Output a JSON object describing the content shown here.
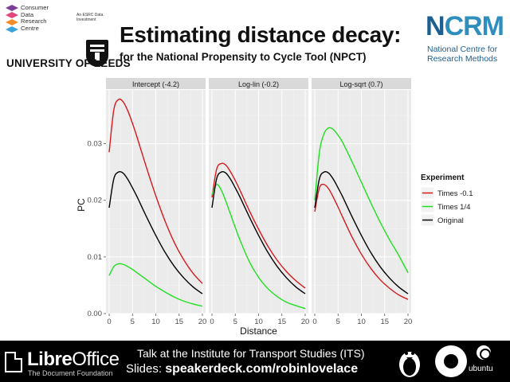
{
  "header": {
    "cdrc_lines": [
      "Consumer",
      "Data",
      "Research",
      "Centre"
    ],
    "esrc_text": "An ESRC Data Investment",
    "leeds": "UNIVERSITY OF LEEDS",
    "title": "Estimating distance decay:",
    "subtitle": "for the National Propensity to Cycle Tool (NPCT)",
    "ncrm_logo_n": "N",
    "ncrm_logo_rest": "CRM",
    "ncrm_line1": "National Centre for",
    "ncrm_line2": "Research Methods"
  },
  "footer": {
    "libre": "Libre",
    "office": "Office",
    "foundation": "The Document Foundation",
    "talk": "Talk at the Institute for Transport Studies (ITS)",
    "slides_label": "Slides: ",
    "slides_url": "speakerdeck.com/robinlovelace",
    "ubuntu": "ubuntu"
  },
  "chart_data": {
    "type": "line",
    "title": "",
    "xlabel": "Distance",
    "ylabel": "PC",
    "xlim": [
      0,
      20
    ],
    "ylim": [
      0,
      0.0395
    ],
    "x_ticks": [
      0,
      5,
      10,
      15,
      20
    ],
    "y_ticks": [
      0.0,
      0.01,
      0.02,
      0.03
    ],
    "y_tick_labels": [
      "0.00",
      "0.01",
      "0.02",
      "0.03"
    ],
    "legend": {
      "title": "Experiment",
      "position": "right",
      "entries": [
        {
          "name": "Times -0.1",
          "color": "#d7191c"
        },
        {
          "name": "Times 1/4",
          "color": "#1fe01f"
        },
        {
          "name": "Original",
          "color": "#000000"
        }
      ]
    },
    "panels": [
      {
        "title": "Intercept (-4.2)",
        "x": [
          0,
          1,
          2,
          3,
          4,
          5,
          6,
          8,
          10,
          12,
          14,
          16,
          18,
          20
        ],
        "series": [
          {
            "name": "Times -0.1",
            "values": [
              0.0285,
              0.036,
              0.0378,
              0.0374,
              0.0358,
              0.0336,
              0.0311,
              0.0258,
              0.0208,
              0.0163,
              0.0125,
              0.0095,
              0.0071,
              0.0053
            ]
          },
          {
            "name": "Times 1/4",
            "values": [
              0.0067,
              0.0083,
              0.0088,
              0.0087,
              0.0083,
              0.0078,
              0.0072,
              0.006,
              0.0048,
              0.0038,
              0.0029,
              0.0022,
              0.0017,
              0.0013
            ]
          },
          {
            "name": "Original",
            "values": [
              0.0187,
              0.0238,
              0.025,
              0.0248,
              0.0237,
              0.0222,
              0.0206,
              0.0171,
              0.0138,
              0.0108,
              0.0083,
              0.0063,
              0.0047,
              0.0035
            ]
          }
        ]
      },
      {
        "title": "Log-lin (-0.2)",
        "x": [
          0,
          1,
          2,
          3,
          4,
          5,
          6,
          8,
          10,
          12,
          14,
          16,
          18,
          20
        ],
        "series": [
          {
            "name": "Times -0.1",
            "values": [
              0.0205,
              0.0255,
              0.0265,
              0.0262,
              0.025,
              0.0235,
              0.0218,
              0.0182,
              0.0149,
              0.0119,
              0.0094,
              0.0074,
              0.0058,
              0.0045
            ]
          },
          {
            "name": "Times 1/4",
            "values": [
              0.021,
              0.0228,
              0.0218,
              0.0198,
              0.0175,
              0.0152,
              0.013,
              0.0092,
              0.0064,
              0.0044,
              0.003,
              0.002,
              0.0014,
              0.0009
            ]
          },
          {
            "name": "Original",
            "values": [
              0.0187,
              0.0238,
              0.025,
              0.0248,
              0.0237,
              0.0222,
              0.0206,
              0.0171,
              0.0138,
              0.0108,
              0.0083,
              0.0063,
              0.0047,
              0.0035
            ]
          }
        ]
      },
      {
        "title": "Log-sqrt (0.7)",
        "x": [
          0,
          1,
          2,
          3,
          4,
          5,
          6,
          8,
          10,
          12,
          14,
          16,
          18,
          20
        ],
        "series": [
          {
            "name": "Times -0.1",
            "values": [
              0.018,
              0.0222,
              0.0228,
              0.022,
              0.0205,
              0.0188,
              0.017,
              0.0135,
              0.0105,
              0.008,
              0.006,
              0.0045,
              0.0033,
              0.0025
            ]
          },
          {
            "name": "Times 1/4",
            "values": [
              0.02,
              0.0285,
              0.0318,
              0.0328,
              0.0325,
              0.0315,
              0.0302,
              0.0268,
              0.0232,
              0.0196,
              0.0162,
              0.0131,
              0.0103,
              0.0072
            ]
          },
          {
            "name": "Original",
            "values": [
              0.0187,
              0.0238,
              0.025,
              0.0248,
              0.0237,
              0.0222,
              0.0206,
              0.0171,
              0.0138,
              0.0108,
              0.0083,
              0.0063,
              0.0047,
              0.0035
            ]
          }
        ]
      }
    ]
  }
}
